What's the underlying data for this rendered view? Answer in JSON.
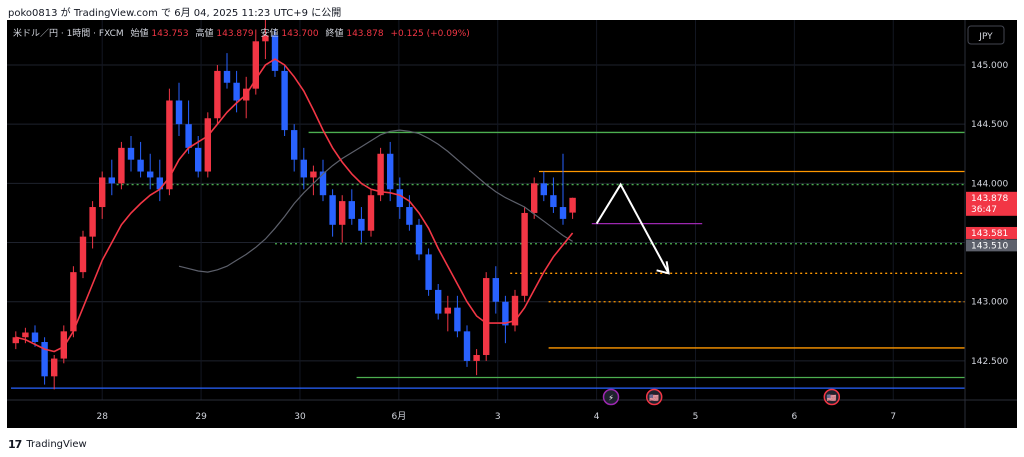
{
  "header": {
    "caption": "poko0813 が TradingView.com で 6月 04, 2025 11:23 UTC+9 に公開"
  },
  "legend": {
    "symbol": "米ドル／円 · 1時間 · FXCM",
    "open_label": "始値",
    "open_value": "143.753",
    "high_label": "高値",
    "high_value": "143.879",
    "low_label": "安値",
    "low_value": "143.700",
    "close_label": "終値",
    "close_value": "143.878",
    "change": "+0.125 (+0.09%)"
  },
  "currency_button": "JPY",
  "footer": {
    "logo": "17",
    "brand": "TradingView"
  },
  "colors": {
    "background": "#000000",
    "up": "#f23645",
    "down": "#2962ff",
    "sma_short": "#f23645",
    "sma_long": "#5d606b",
    "green_level": "#4caf50",
    "orange_level": "#ff9800",
    "blue_level": "#2962ff",
    "purple_level": "#9c27b0",
    "arrow": "#ffffff"
  },
  "chart_data": {
    "type": "candlestick",
    "ylim": [
      142.17,
      145.38
    ],
    "y_ticks": [
      "145.000",
      "144.500",
      "144.000",
      "143.500",
      "143.000",
      "142.500"
    ],
    "x_ticks": [
      "28",
      "29",
      "30",
      "6月",
      "3",
      "4",
      "5",
      "6",
      "7"
    ],
    "price_labels": [
      {
        "name": "current",
        "value": "143.878",
        "sub": "36:47",
        "color": "#f23645"
      },
      {
        "name": "sma-short",
        "value": "143.581",
        "color": "#f23645"
      },
      {
        "name": "sma-long",
        "value": "143.510",
        "color": "#5d606b"
      }
    ],
    "horizontal_levels": [
      {
        "name": "green-level-upper",
        "value": 144.43,
        "color": "#4caf50",
        "style": "solid"
      },
      {
        "name": "green-level-dotted-upper",
        "value": 143.99,
        "color": "#4caf50",
        "style": "dotted"
      },
      {
        "name": "orange-level-upper",
        "value": 144.1,
        "color": "#ff9800",
        "style": "solid"
      },
      {
        "name": "purple-level",
        "value": 143.66,
        "color": "#9c27b0",
        "style": "solid"
      },
      {
        "name": "green-level-dotted-lower",
        "value": 143.49,
        "color": "#4caf50",
        "style": "dotted"
      },
      {
        "name": "orange-level-dotted-upper",
        "value": 143.24,
        "color": "#ff9800",
        "style": "dotted"
      },
      {
        "name": "orange-level-dotted-lower",
        "value": 143.0,
        "color": "#ff9800",
        "style": "dotted"
      },
      {
        "name": "orange-level-lower",
        "value": 142.61,
        "color": "#ff9800",
        "style": "solid"
      },
      {
        "name": "green-level-lower",
        "value": 142.36,
        "color": "#4caf50",
        "style": "solid"
      },
      {
        "name": "blue-level",
        "value": 142.27,
        "color": "#2962ff",
        "style": "solid"
      }
    ],
    "candles": [
      [
        142.65,
        142.75,
        142.6,
        142.7
      ],
      [
        142.7,
        142.78,
        142.65,
        142.74
      ],
      [
        142.74,
        142.8,
        142.62,
        142.66
      ],
      [
        142.66,
        142.7,
        142.3,
        142.37
      ],
      [
        142.37,
        142.55,
        142.26,
        142.52
      ],
      [
        142.52,
        142.8,
        142.48,
        142.75
      ],
      [
        142.75,
        143.3,
        142.7,
        143.25
      ],
      [
        143.25,
        143.6,
        143.2,
        143.55
      ],
      [
        143.55,
        143.85,
        143.45,
        143.8
      ],
      [
        143.8,
        144.1,
        143.7,
        144.05
      ],
      [
        144.05,
        144.2,
        143.9,
        144.0
      ],
      [
        144.0,
        144.35,
        143.95,
        144.3
      ],
      [
        144.3,
        144.4,
        144.1,
        144.2
      ],
      [
        144.2,
        144.35,
        144.05,
        144.1
      ],
      [
        144.1,
        144.25,
        143.95,
        144.05
      ],
      [
        144.05,
        144.2,
        143.85,
        143.95
      ],
      [
        143.95,
        144.8,
        143.9,
        144.7
      ],
      [
        144.7,
        144.85,
        144.4,
        144.5
      ],
      [
        144.5,
        144.7,
        144.25,
        144.3
      ],
      [
        144.3,
        144.4,
        144.05,
        144.1
      ],
      [
        144.1,
        144.6,
        144.05,
        144.55
      ],
      [
        144.55,
        145.0,
        144.5,
        144.95
      ],
      [
        144.95,
        145.1,
        144.8,
        144.85
      ],
      [
        144.85,
        144.95,
        144.6,
        144.7
      ],
      [
        144.7,
        144.9,
        144.55,
        144.8
      ],
      [
        144.8,
        145.3,
        144.75,
        145.2
      ],
      [
        145.2,
        145.38,
        145.05,
        145.25
      ],
      [
        145.25,
        145.3,
        144.9,
        144.95
      ],
      [
        144.95,
        145.0,
        144.4,
        144.45
      ],
      [
        144.45,
        144.5,
        144.1,
        144.2
      ],
      [
        144.2,
        144.3,
        143.95,
        144.05
      ],
      [
        144.05,
        144.15,
        143.9,
        144.1
      ],
      [
        144.1,
        144.2,
        143.85,
        143.9
      ],
      [
        143.9,
        143.95,
        143.55,
        143.65
      ],
      [
        143.65,
        143.9,
        143.5,
        143.85
      ],
      [
        143.85,
        143.95,
        143.65,
        143.7
      ],
      [
        143.7,
        143.8,
        143.5,
        143.6
      ],
      [
        143.6,
        143.95,
        143.55,
        143.9
      ],
      [
        143.9,
        144.3,
        143.85,
        144.25
      ],
      [
        144.25,
        144.35,
        143.85,
        143.95
      ],
      [
        143.95,
        144.05,
        143.7,
        143.8
      ],
      [
        143.8,
        143.9,
        143.6,
        143.65
      ],
      [
        143.65,
        143.7,
        143.35,
        143.4
      ],
      [
        143.4,
        143.45,
        143.05,
        143.1
      ],
      [
        143.1,
        143.15,
        142.85,
        142.9
      ],
      [
        142.9,
        143.05,
        142.75,
        142.95
      ],
      [
        142.95,
        143.05,
        142.7,
        142.75
      ],
      [
        142.75,
        142.8,
        142.45,
        142.5
      ],
      [
        142.5,
        142.6,
        142.38,
        142.55
      ],
      [
        142.55,
        143.25,
        142.5,
        143.2
      ],
      [
        143.2,
        143.3,
        142.9,
        143.0
      ],
      [
        143.0,
        143.05,
        142.65,
        142.8
      ],
      [
        142.8,
        143.1,
        142.75,
        143.05
      ],
      [
        143.05,
        143.8,
        143.0,
        143.75
      ],
      [
        143.75,
        144.05,
        143.7,
        144.0
      ],
      [
        144.0,
        144.1,
        143.85,
        143.9
      ],
      [
        143.9,
        144.05,
        143.75,
        143.8
      ],
      [
        143.8,
        144.25,
        143.65,
        143.7
      ],
      [
        143.753,
        143.879,
        143.7,
        143.878
      ]
    ],
    "sma_short": [
      142.7,
      142.68,
      142.64,
      142.6,
      142.58,
      142.62,
      142.75,
      142.95,
      143.15,
      143.35,
      143.5,
      143.65,
      143.75,
      143.83,
      143.9,
      143.95,
      144.05,
      144.2,
      144.3,
      144.35,
      144.4,
      144.5,
      144.6,
      144.68,
      144.75,
      144.88,
      145.0,
      145.05,
      145.0,
      144.9,
      144.78,
      144.62,
      144.45,
      144.3,
      144.18,
      144.08,
      144.0,
      143.95,
      143.93,
      143.92,
      143.9,
      143.85,
      143.75,
      143.62,
      143.45,
      143.3,
      143.15,
      143.0,
      142.88,
      142.82,
      142.82,
      142.82,
      142.84,
      142.95,
      143.1,
      143.25,
      143.38,
      143.48,
      143.581
    ],
    "sma_long": [
      null,
      null,
      null,
      null,
      null,
      null,
      null,
      null,
      null,
      null,
      null,
      null,
      null,
      null,
      null,
      null,
      null,
      143.3,
      143.28,
      143.26,
      143.25,
      143.27,
      143.3,
      143.35,
      143.4,
      143.46,
      143.53,
      143.62,
      143.72,
      143.83,
      143.92,
      144.0,
      144.08,
      144.15,
      144.21,
      144.26,
      144.31,
      144.36,
      144.41,
      144.44,
      144.45,
      144.44,
      144.42,
      144.38,
      144.33,
      144.27,
      144.2,
      144.13,
      144.06,
      143.99,
      143.93,
      143.88,
      143.84,
      143.8,
      143.74,
      143.68,
      143.62,
      143.56,
      143.51
    ],
    "projection": [
      143.66,
      143.99,
      143.24
    ],
    "events": [
      {
        "name": "lightning-event-icon",
        "glyph": "⚡",
        "slot": 62.5,
        "color": "#9c27b0"
      },
      {
        "name": "us-flag-event-icon-5",
        "glyph": "🇺🇸",
        "slot": 67,
        "color": "#f23645"
      },
      {
        "name": "us-flag-event-icon-7",
        "glyph": "🇺🇸",
        "slot": 85.5,
        "color": "#f23645"
      }
    ]
  }
}
